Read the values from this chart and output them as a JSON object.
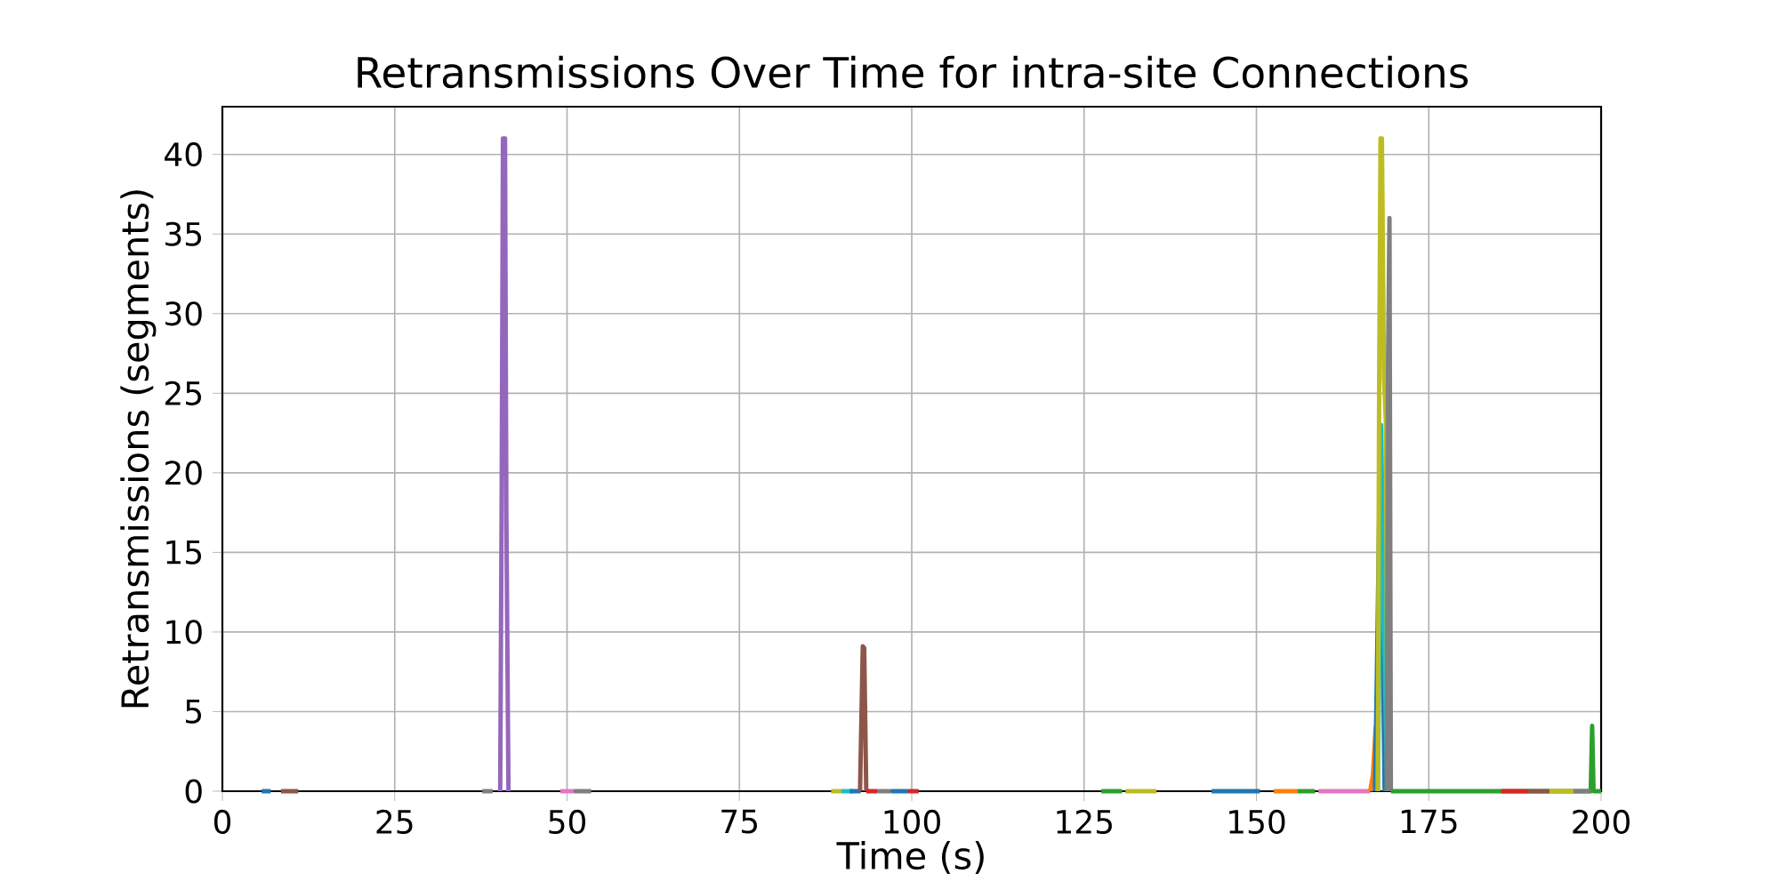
{
  "chart_data": {
    "type": "line",
    "title": "Retransmissions Over Time for intra-site Connections",
    "xlabel": "Time (s)",
    "ylabel": "Retransmissions (segments)",
    "xlim": [
      0,
      200
    ],
    "ylim": [
      0,
      43
    ],
    "xticks": [
      0,
      25,
      50,
      75,
      100,
      125,
      150,
      175,
      200
    ],
    "yticks": [
      0,
      5,
      10,
      15,
      20,
      25,
      30,
      35,
      40
    ],
    "grid": true,
    "series": [
      {
        "color": "#1f77b4",
        "x": [
          5.7,
          7
        ],
        "values": [
          0,
          0
        ]
      },
      {
        "color": "#8c564b",
        "x": [
          8.5,
          11
        ],
        "values": [
          0,
          0
        ]
      },
      {
        "color": "#7f7f7f",
        "x": [
          37.7,
          39.2
        ],
        "values": [
          0,
          0
        ]
      },
      {
        "color": "#9467bd",
        "x": [
          40.3,
          40.5,
          40.7,
          41.0,
          41.2,
          41.5
        ],
        "values": [
          0,
          17,
          41,
          41,
          17,
          0
        ]
      },
      {
        "color": "#e377c2",
        "x": [
          49,
          51
        ],
        "values": [
          0,
          0
        ]
      },
      {
        "color": "#7f7f7f",
        "x": [
          51,
          53.5
        ],
        "values": [
          0,
          0
        ]
      },
      {
        "color": "#bcbd22",
        "x": [
          88.3,
          89.8
        ],
        "values": [
          0,
          0
        ]
      },
      {
        "color": "#17becf",
        "x": [
          89.8,
          91.5
        ],
        "values": [
          0,
          0
        ]
      },
      {
        "color": "#1f77b4",
        "x": [
          91,
          92.6
        ],
        "values": [
          0,
          0
        ]
      },
      {
        "color": "#8c564b",
        "x": [
          92.5,
          92.9,
          93.1,
          93.4
        ],
        "values": [
          0,
          9.1,
          9,
          0
        ]
      },
      {
        "color": "#d62728",
        "x": [
          93.4,
          95
        ],
        "values": [
          0,
          0
        ]
      },
      {
        "color": "#7f7f7f",
        "x": [
          95,
          97
        ],
        "values": [
          0,
          0
        ]
      },
      {
        "color": "#1f77b4",
        "x": [
          97,
          99.5
        ],
        "values": [
          0,
          0
        ]
      },
      {
        "color": "#d62728",
        "x": [
          99.5,
          101
        ],
        "values": [
          0,
          0
        ]
      },
      {
        "color": "#2ca02c",
        "x": [
          127.5,
          130.5
        ],
        "values": [
          0,
          0
        ]
      },
      {
        "color": "#bcbd22",
        "x": [
          131,
          135.5
        ],
        "values": [
          0,
          0
        ]
      },
      {
        "color": "#1f77b4",
        "x": [
          143.5,
          150.5
        ],
        "values": [
          0,
          0
        ]
      },
      {
        "color": "#ff7f0e",
        "x": [
          152.5,
          156
        ],
        "values": [
          0,
          0
        ]
      },
      {
        "color": "#2ca02c",
        "x": [
          156,
          158.5
        ],
        "values": [
          0,
          0
        ]
      },
      {
        "color": "#e377c2",
        "x": [
          159,
          166.5
        ],
        "values": [
          0,
          0
        ]
      },
      {
        "color": "#ff7f0e",
        "x": [
          166.5,
          166.9,
          167.3,
          167.6
        ],
        "values": [
          0,
          1,
          4,
          0
        ]
      },
      {
        "color": "#1f77b4",
        "x": [
          167.2,
          167.5,
          167.8,
          168.0,
          168.3,
          168.6
        ],
        "values": [
          0,
          8,
          17,
          21,
          10,
          0
        ]
      },
      {
        "color": "#17becf",
        "x": [
          167.6,
          167.9,
          168.1,
          168.4,
          168.8,
          169.0
        ],
        "values": [
          0,
          12,
          23,
          13,
          4,
          0
        ]
      },
      {
        "color": "#bcbd22",
        "x": [
          167.6,
          167.8,
          168.0,
          168.2,
          168.5,
          168.8,
          169.0
        ],
        "values": [
          0,
          25,
          41,
          41,
          26,
          23,
          0
        ]
      },
      {
        "color": "#7f7f7f",
        "x": [
          168.9,
          169.1,
          169.3,
          169.5
        ],
        "values": [
          0,
          27,
          36,
          0
        ]
      },
      {
        "color": "#2ca02c",
        "x": [
          169.5,
          175,
          185,
          198.5,
          198.7,
          198.9,
          200
        ],
        "values": [
          0,
          0,
          0,
          0,
          4.1,
          0,
          0
        ]
      },
      {
        "color": "#d62728",
        "x": [
          185.5,
          189.5
        ],
        "values": [
          0,
          0
        ]
      },
      {
        "color": "#8c564b",
        "x": [
          189.5,
          192.5
        ],
        "values": [
          0,
          0
        ]
      },
      {
        "color": "#bcbd22",
        "x": [
          192.5,
          196
        ],
        "values": [
          0,
          0
        ]
      },
      {
        "color": "#7f7f7f",
        "x": [
          196,
          198.5
        ],
        "values": [
          0,
          0
        ]
      }
    ]
  }
}
